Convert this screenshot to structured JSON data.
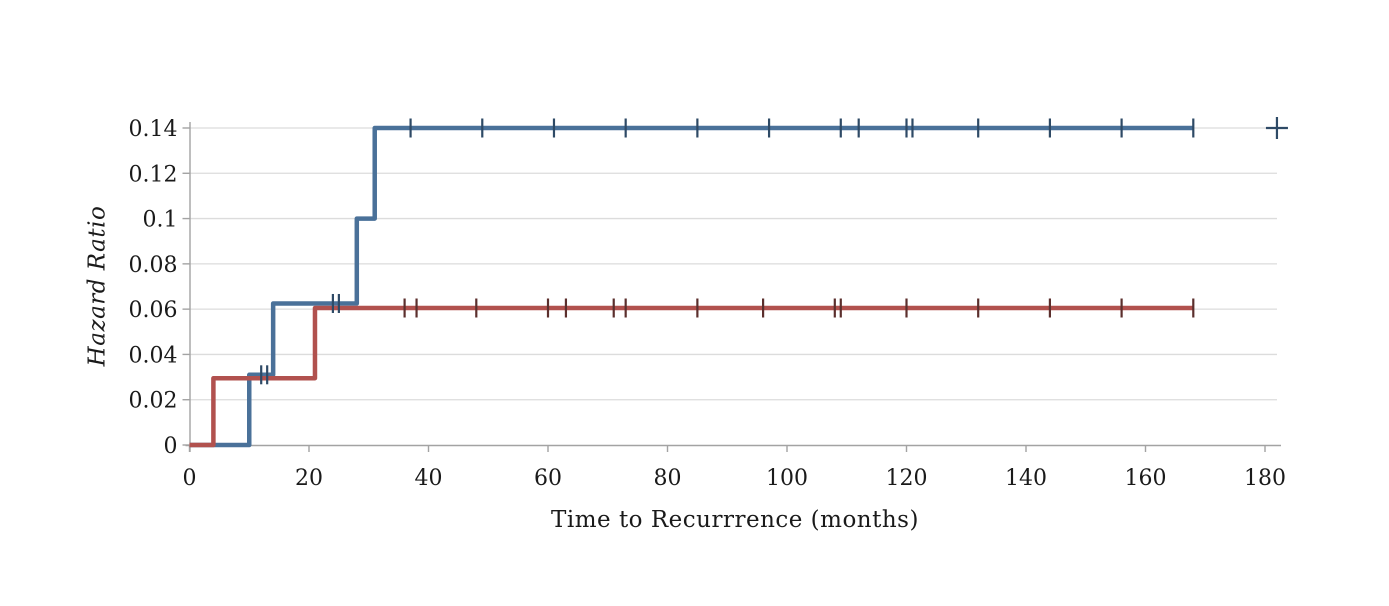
{
  "chart_data": {
    "type": "line",
    "subtype": "kaplan-meier-step",
    "title": "",
    "xlabel": "Time to Recurrrence (months)",
    "ylabel": "Hazard Ratio",
    "legend": "none",
    "grid": "horizontal-only",
    "x_axis": {
      "min": 0,
      "max": 180,
      "ticks": [
        {
          "v": 0,
          "label": "0"
        },
        {
          "v": 20,
          "label": "20"
        },
        {
          "v": 40,
          "label": "40"
        },
        {
          "v": 60,
          "label": "60"
        },
        {
          "v": 80,
          "label": "80"
        },
        {
          "v": 100,
          "label": "100"
        },
        {
          "v": 120,
          "label": "120"
        },
        {
          "v": 140,
          "label": "140"
        },
        {
          "v": 160,
          "label": "160"
        },
        {
          "v": 180,
          "label": "180"
        }
      ]
    },
    "y_axis": {
      "min": 0,
      "max": 0.14,
      "ticks": [
        {
          "v": 0,
          "label": "0"
        },
        {
          "v": 0.02,
          "label": "0.02"
        },
        {
          "v": 0.04,
          "label": "0.04"
        },
        {
          "v": 0.06,
          "label": "0.06"
        },
        {
          "v": 0.08,
          "label": "0.08"
        },
        {
          "v": 0.1,
          "label": "0.1"
        },
        {
          "v": 0.12,
          "label": "0.12"
        },
        {
          "v": 0.14,
          "label": "0.14"
        }
      ]
    },
    "colors": {
      "gridline": "#dcdcdc",
      "axis": "#a3a3a3",
      "text": "#1a1a1a"
    },
    "series": [
      {
        "name": "blue-group",
        "color": "#4a7199",
        "censor_color": "#2e4a66",
        "step_points": [
          [
            0,
            0
          ],
          [
            10,
            0.031
          ],
          [
            14,
            0.0625
          ],
          [
            28,
            0.1
          ],
          [
            31,
            0.14
          ],
          [
            168,
            0.14
          ]
        ],
        "censor_marks": [
          [
            12,
            0.031
          ],
          [
            13,
            0.031
          ],
          [
            24,
            0.0625
          ],
          [
            25,
            0.0625
          ],
          [
            37,
            0.14
          ],
          [
            49,
            0.14
          ],
          [
            61,
            0.14
          ],
          [
            73,
            0.14
          ],
          [
            85,
            0.14
          ],
          [
            97,
            0.14
          ],
          [
            109,
            0.14
          ],
          [
            112,
            0.14
          ],
          [
            120,
            0.14
          ],
          [
            121,
            0.14
          ],
          [
            132,
            0.14
          ],
          [
            144,
            0.14
          ],
          [
            156,
            0.14
          ],
          [
            168,
            0.14
          ]
        ],
        "isolated_plus": [
          182,
          0.14
        ]
      },
      {
        "name": "red-group",
        "color": "#b1514e",
        "censor_color": "#5c2f2d",
        "step_points": [
          [
            0,
            0
          ],
          [
            4,
            0.0295
          ],
          [
            21,
            0.0605
          ],
          [
            168,
            0.0605
          ]
        ],
        "censor_marks": [
          [
            36,
            0.0605
          ],
          [
            38,
            0.0605
          ],
          [
            48,
            0.0605
          ],
          [
            60,
            0.0605
          ],
          [
            63,
            0.0605
          ],
          [
            71,
            0.0605
          ],
          [
            73,
            0.0605
          ],
          [
            85,
            0.0605
          ],
          [
            96,
            0.0605
          ],
          [
            108,
            0.0605
          ],
          [
            109,
            0.0605
          ],
          [
            120,
            0.0605
          ],
          [
            132,
            0.0605
          ],
          [
            144,
            0.0605
          ],
          [
            156,
            0.0605
          ],
          [
            168,
            0.0605
          ]
        ],
        "isolated_plus": null
      }
    ]
  }
}
